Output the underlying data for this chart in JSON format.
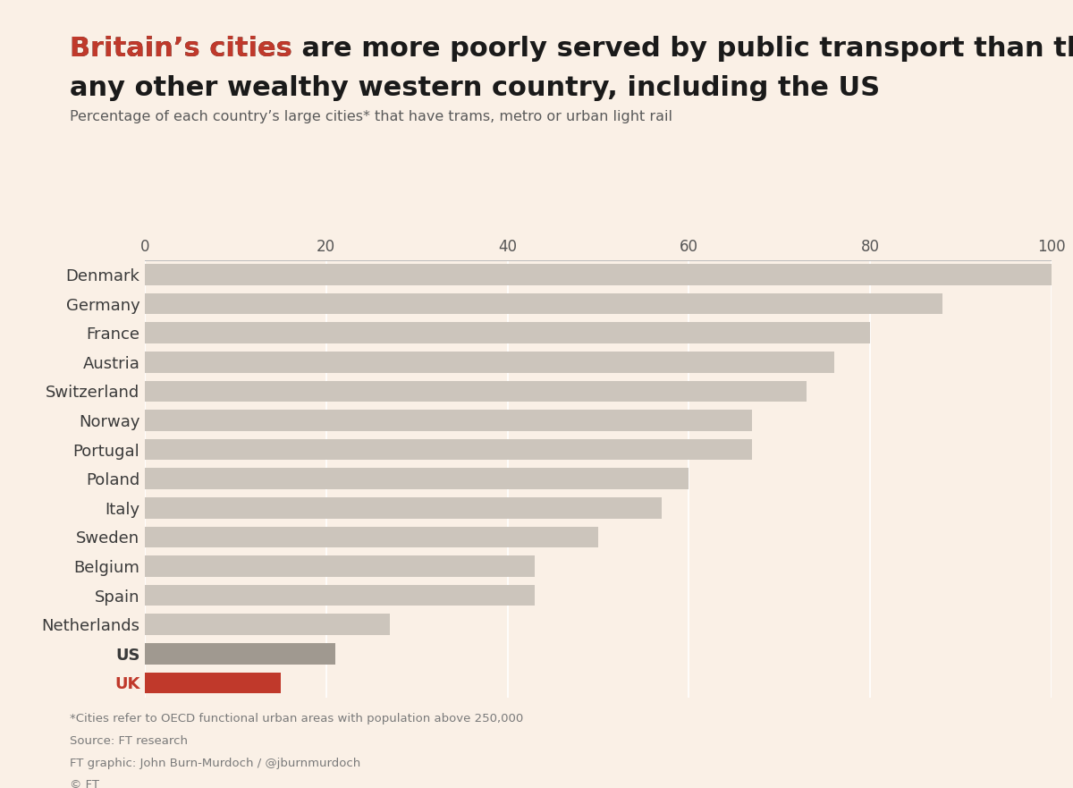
{
  "countries": [
    "Denmark",
    "Germany",
    "France",
    "Austria",
    "Switzerland",
    "Norway",
    "Portugal",
    "Poland",
    "Italy",
    "Sweden",
    "Belgium",
    "Spain",
    "Netherlands",
    "US",
    "UK"
  ],
  "values": [
    100,
    88,
    80,
    76,
    73,
    67,
    67,
    60,
    57,
    50,
    43,
    43,
    27,
    21,
    15
  ],
  "bar_colors": [
    "#ccc5bc",
    "#ccc5bc",
    "#ccc5bc",
    "#ccc5bc",
    "#ccc5bc",
    "#ccc5bc",
    "#ccc5bc",
    "#ccc5bc",
    "#ccc5bc",
    "#ccc5bc",
    "#ccc5bc",
    "#ccc5bc",
    "#ccc5bc",
    "#a09990",
    "#c0392b"
  ],
  "background_color": "#faf0e6",
  "title_red": "Britain’s cities",
  "title_black_line1": " are more poorly served by public transport than those of",
  "title_black_line2": "any other wealthy western country, including the US",
  "subtitle": "Percentage of each country’s large cities* that have trams, metro or urban light rail",
  "footnotes": [
    "*Cities refer to OECD functional urban areas with population above 250,000",
    "Source: FT research",
    "FT graphic: John Burn-Murdoch / @jburnmurdoch",
    "© FT"
  ],
  "title_red_color": "#c0392b",
  "title_black_color": "#1a1a1a",
  "subtitle_color": "#5a5a5a",
  "footnote_color": "#7a7a7a",
  "label_color_default": "#3a3a3a",
  "label_color_uk": "#c0392b",
  "xlim": [
    0,
    100
  ],
  "xticks": [
    0,
    20,
    40,
    60,
    80,
    100
  ],
  "bar_height": 0.72,
  "title_fontsize": 22,
  "subtitle_fontsize": 11.5,
  "tick_fontsize": 12,
  "label_fontsize": 13
}
